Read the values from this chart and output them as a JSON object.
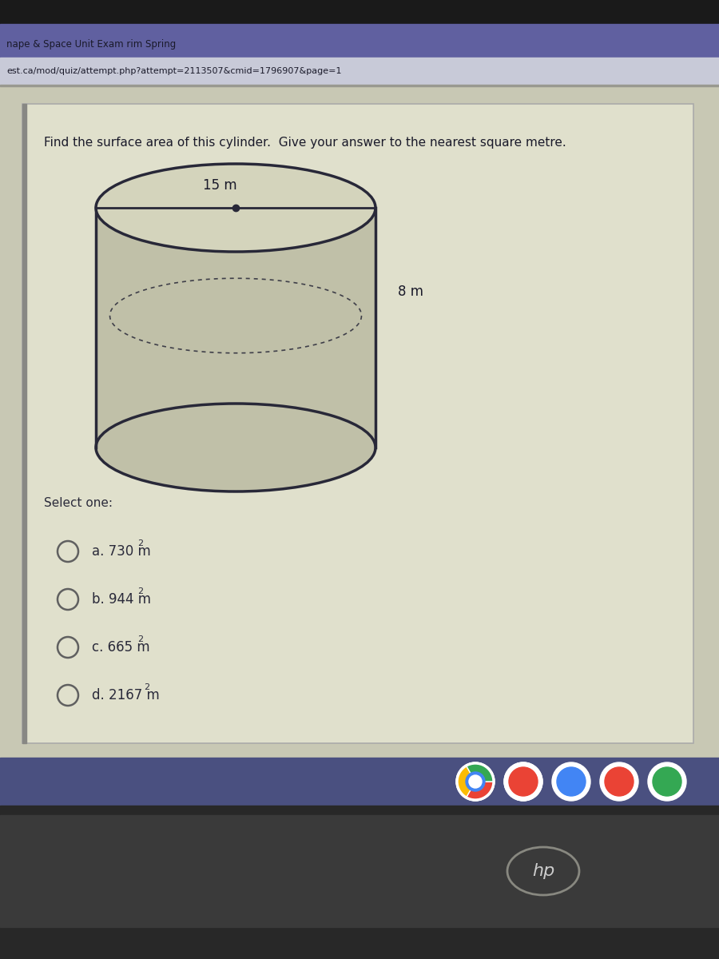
{
  "title_bar_text": "nape & Space Unit Exam rim Spring",
  "url_text": "est.ca/mod/quiz/attempt.php?attempt=2113507&cmid=1796907&page=1",
  "question_text": "Find the surface area of this cylinder.  Give your answer to the nearest square metre.",
  "dim1_label": "15 m",
  "dim2_label": "8 m",
  "select_one_label": "Select one:",
  "options": [
    {
      "letter": "a",
      "text": "730 m",
      "sup": "2"
    },
    {
      "letter": "b",
      "text": "944 m",
      "sup": "2"
    },
    {
      "letter": "c",
      "text": "665 m",
      "sup": "2"
    },
    {
      "letter": "d",
      "text": "2167 m",
      "sup": "2"
    }
  ],
  "bg_dark_top": "#1e1e1e",
  "bg_title_bar": "#6060a0",
  "bg_url_bar": "#c8cad8",
  "bg_main": "#c8c8b4",
  "bg_content": "#e0e0cc",
  "bg_bottom_taskbar": "#4a5080",
  "bg_bezel_bottom": "#2a2a2a",
  "cylinder_fill": "#c0c0a8",
  "cylinder_stroke": "#282838",
  "cylinder_top_fill": "#d4d4bc",
  "text_dark": "#1a1a2a",
  "text_option": "#2a2a3a",
  "icon_colors": [
    "#e8e8e8",
    "#e8e8e8",
    "#e8e8e8",
    "#e8e8e8",
    "#e8e8e8"
  ],
  "hp_circle_color": "#888880"
}
